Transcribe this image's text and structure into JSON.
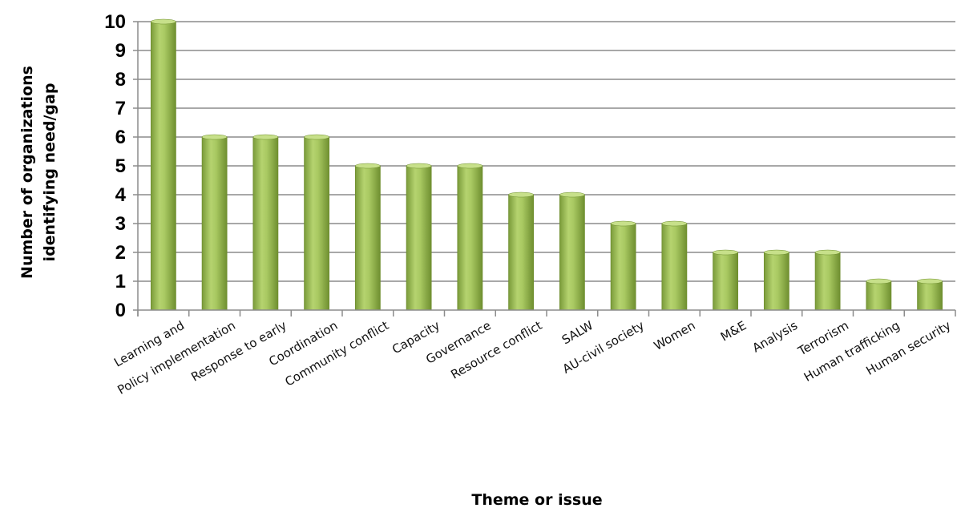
{
  "chart_data": {
    "type": "bar",
    "title": "",
    "xlabel": "Theme or issue",
    "ylabel_lines": [
      "Number of organizations",
      "identifying need/gap"
    ],
    "ylim": [
      0,
      10
    ],
    "yticks": [
      0,
      1,
      2,
      3,
      4,
      5,
      6,
      7,
      8,
      9,
      10
    ],
    "grid": true,
    "bar_color": "#9bbb59",
    "categories": [
      "Learning and",
      "Policy implementation",
      "Response to early",
      "Coordination",
      "Community conflict",
      "Capacity",
      "Governance",
      "Resource conflict",
      "SALW",
      "AU-civil society",
      "Women",
      "M&E",
      "Analysis",
      "Terrorism",
      "Human trafficking",
      "Human security"
    ],
    "values": [
      10,
      6,
      6,
      6,
      5,
      5,
      5,
      4,
      4,
      3,
      3,
      2,
      2,
      2,
      1,
      1
    ]
  }
}
